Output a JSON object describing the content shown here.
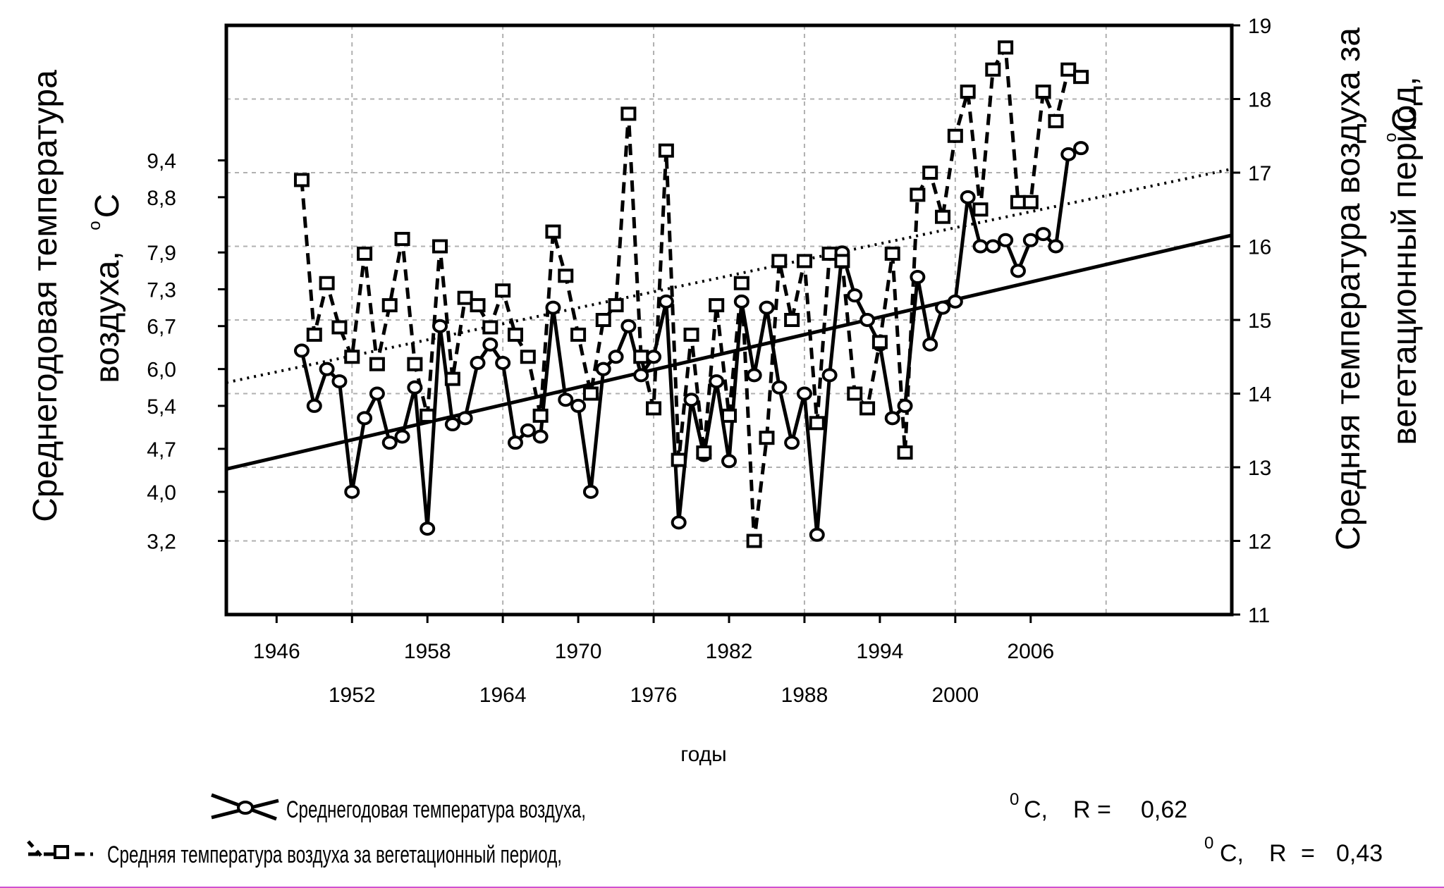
{
  "chart_data": {
    "type": "line",
    "title": "",
    "xlabel": "годы",
    "ylabel_left": "Среднегодовая температура воздуха,°С",
    "ylabel_left_lines": [
      "Среднегодовая температура",
      "воздуха,",
      "о",
      "С"
    ],
    "ylabel_right": "Средняя температура воздуха за вегетационный период,°С",
    "ylabel_right_lines": [
      "Средняя температура воздуха за",
      "вегетационный период,",
      "о",
      "С"
    ],
    "xlim": [
      1942,
      2022
    ],
    "x_ticks_upper": [
      "1946",
      "1958",
      "1970",
      "1982",
      "1994",
      "2006"
    ],
    "x_ticks_lower": [
      "1952",
      "1964",
      "1976",
      "1988",
      "2000"
    ],
    "x_gridlines": [
      1952,
      1964,
      1976,
      1988,
      2000,
      2012
    ],
    "ylim_left": [
      2.0,
      11.6
    ],
    "ylim_right": [
      11,
      19
    ],
    "y_ticks_left": [
      "3,2",
      "4,0",
      "4,7",
      "5,4",
      "6,0",
      "6,7",
      "7,3",
      "7,9",
      "8,8",
      "9,4"
    ],
    "y_ticks_left_values": [
      3.2,
      4.0,
      4.7,
      5.4,
      6.0,
      6.7,
      7.3,
      7.9,
      8.8,
      9.4
    ],
    "y_ticks_right": [
      11,
      12,
      13,
      14,
      15,
      16,
      17,
      18,
      19
    ],
    "grid": true,
    "series": [
      {
        "name": "Среднегодовая температура воздуха,",
        "axis": "left",
        "marker": "circle",
        "line": "solid",
        "x": [
          1948,
          1949,
          1950,
          1951,
          1952,
          1953,
          1954,
          1955,
          1956,
          1957,
          1958,
          1959,
          1960,
          1961,
          1962,
          1963,
          1964,
          1965,
          1966,
          1967,
          1968,
          1969,
          1970,
          1971,
          1972,
          1973,
          1974,
          1975,
          1976,
          1977,
          1978,
          1979,
          1980,
          1981,
          1982,
          1983,
          1984,
          1985,
          1986,
          1987,
          1988,
          1989,
          1990,
          1991,
          1992,
          1993,
          1994,
          1995,
          1996,
          1997,
          1998,
          1999,
          2000,
          2001,
          2002,
          2003,
          2004,
          2005,
          2006,
          2007,
          2008,
          2009,
          2010
        ],
        "values": [
          6.3,
          5.4,
          6.0,
          5.8,
          4.0,
          5.2,
          5.6,
          4.8,
          4.9,
          5.7,
          3.4,
          6.7,
          5.1,
          5.2,
          6.1,
          6.4,
          6.1,
          4.8,
          5.0,
          4.9,
          7.0,
          5.5,
          5.4,
          4.0,
          6.0,
          6.2,
          6.7,
          5.9,
          6.2,
          7.1,
          3.5,
          5.5,
          4.6,
          5.8,
          4.5,
          7.1,
          5.9,
          7.0,
          5.7,
          4.8,
          5.6,
          3.3,
          5.9,
          7.9,
          7.2,
          6.8,
          6.4,
          5.2,
          5.4,
          7.5,
          6.4,
          7.0,
          7.1,
          8.8,
          8.0,
          8.0,
          8.1,
          7.6,
          8.1,
          8.2,
          8.0,
          9.5,
          9.6
        ]
      },
      {
        "name": "Средняя температура воздуха за вегетационный период,",
        "axis": "right",
        "marker": "square",
        "line": "dashed",
        "x": [
          1948,
          1949,
          1950,
          1951,
          1952,
          1953,
          1954,
          1955,
          1956,
          1957,
          1958,
          1959,
          1960,
          1961,
          1962,
          1963,
          1964,
          1965,
          1966,
          1967,
          1968,
          1969,
          1970,
          1971,
          1972,
          1973,
          1974,
          1975,
          1976,
          1977,
          1978,
          1979,
          1980,
          1981,
          1982,
          1983,
          1984,
          1985,
          1986,
          1987,
          1988,
          1989,
          1990,
          1991,
          1992,
          1993,
          1994,
          1995,
          1996,
          1997,
          1998,
          1999,
          2000,
          2001,
          2002,
          2003,
          2004,
          2005,
          2006,
          2007,
          2008,
          2009,
          2010
        ],
        "values": [
          16.9,
          14.8,
          15.5,
          14.9,
          14.5,
          15.9,
          14.4,
          15.2,
          16.1,
          14.4,
          13.7,
          16.0,
          14.2,
          15.3,
          15.2,
          14.9,
          15.4,
          14.8,
          14.5,
          13.7,
          16.2,
          15.6,
          14.8,
          14.0,
          15.0,
          15.2,
          17.8,
          14.5,
          13.8,
          17.3,
          13.1,
          14.8,
          13.2,
          15.2,
          13.7,
          15.5,
          12.0,
          13.4,
          15.8,
          15.0,
          15.8,
          13.6,
          15.9,
          15.8,
          14.0,
          13.8,
          14.7,
          15.9,
          13.2,
          16.7,
          17.0,
          16.4,
          17.5,
          18.1,
          16.5,
          18.4,
          18.7,
          16.6,
          16.6,
          18.1,
          17.7,
          18.4,
          18.3
        ]
      }
    ],
    "trendlines": [
      {
        "axis": "left",
        "line": "solid",
        "x": [
          1942,
          2022
        ],
        "values": [
          4.37,
          8.18
        ]
      },
      {
        "axis": "right",
        "line": "dotted",
        "x": [
          1942,
          2022
        ],
        "values": [
          14.15,
          17.05
        ]
      }
    ],
    "legend": [
      {
        "label": "Среднегодовая температура воздуха,",
        "unit_sup": "0",
        "unit": "С,",
        "r_label": "R =",
        "r_value": "0,62"
      },
      {
        "label": "Средняя температура воздуха за вегетационный период,",
        "unit_sup": "0",
        "unit": "С,",
        "r_label": "R",
        "r_eq": "=",
        "r_value": "0,43"
      }
    ],
    "legend_placement": "bottom"
  },
  "colors": {
    "line": "#000000",
    "grid": "#b0b0b0",
    "background": "#ffffff",
    "bottom_rule": "#d050d0"
  }
}
